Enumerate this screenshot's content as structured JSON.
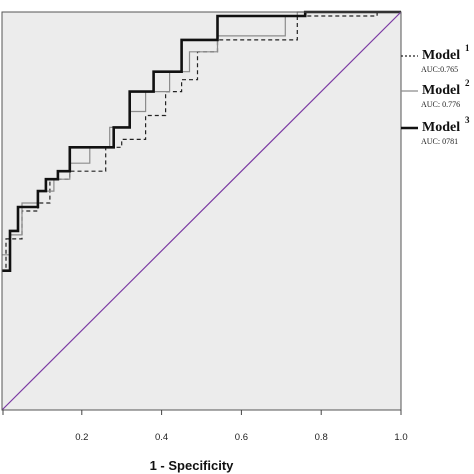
{
  "chart_data": {
    "type": "line",
    "xlabel": "1 - Specificity",
    "ylabel": "",
    "xlim": [
      0,
      1
    ],
    "ylim": [
      0,
      1
    ],
    "x_ticks": [
      "0.2",
      "0.4",
      "0.6",
      "0.8",
      "1.0"
    ],
    "grid": false,
    "legend_position": "right",
    "background_color": "#ececec",
    "series": [
      {
        "name": "Model 1",
        "number": "1",
        "auc_label": "AUC:0.765",
        "line_style": "dashed",
        "color": "#222222",
        "x": [
          0,
          0.01,
          0.01,
          0.05,
          0.05,
          0.09,
          0.09,
          0.12,
          0.12,
          0.17,
          0.17,
          0.26,
          0.26,
          0.3,
          0.3,
          0.36,
          0.36,
          0.41,
          0.41,
          0.45,
          0.45,
          0.49,
          0.49,
          0.54,
          0.54,
          0.74,
          0.74,
          0.94,
          0.94,
          1.0
        ],
        "y": [
          0.35,
          0.35,
          0.43,
          0.43,
          0.5,
          0.5,
          0.52,
          0.52,
          0.58,
          0.58,
          0.6,
          0.6,
          0.66,
          0.66,
          0.68,
          0.68,
          0.74,
          0.74,
          0.8,
          0.8,
          0.83,
          0.83,
          0.9,
          0.9,
          0.93,
          0.93,
          0.99,
          0.99,
          1.0,
          1.0
        ]
      },
      {
        "name": "Model 2",
        "number": "2",
        "auc_label": "AUC: 0.776",
        "line_style": "solid",
        "color": "#8c8c8c",
        "x": [
          0,
          0.02,
          0.02,
          0.05,
          0.05,
          0.09,
          0.09,
          0.13,
          0.13,
          0.17,
          0.17,
          0.22,
          0.22,
          0.27,
          0.27,
          0.32,
          0.32,
          0.36,
          0.36,
          0.42,
          0.42,
          0.47,
          0.47,
          0.54,
          0.54,
          0.71,
          0.71,
          0.74,
          0.74,
          1.0
        ],
        "y": [
          0.39,
          0.39,
          0.44,
          0.44,
          0.52,
          0.52,
          0.55,
          0.55,
          0.58,
          0.58,
          0.62,
          0.62,
          0.66,
          0.66,
          0.71,
          0.71,
          0.75,
          0.75,
          0.8,
          0.8,
          0.85,
          0.85,
          0.9,
          0.9,
          0.94,
          0.94,
          0.99,
          0.99,
          1.0,
          1.0
        ]
      },
      {
        "name": "Model 3",
        "number": "3",
        "auc_label": "AUC: 0781",
        "line_style": "solid-thick",
        "color": "#111111",
        "x": [
          0,
          0.02,
          0.02,
          0.04,
          0.04,
          0.09,
          0.09,
          0.11,
          0.11,
          0.14,
          0.14,
          0.17,
          0.17,
          0.28,
          0.28,
          0.32,
          0.32,
          0.38,
          0.38,
          0.45,
          0.45,
          0.54,
          0.54,
          0.76,
          0.76,
          1.0
        ],
        "y": [
          0.35,
          0.35,
          0.45,
          0.45,
          0.51,
          0.51,
          0.55,
          0.55,
          0.58,
          0.58,
          0.6,
          0.6,
          0.66,
          0.66,
          0.71,
          0.71,
          0.8,
          0.8,
          0.85,
          0.85,
          0.93,
          0.93,
          0.99,
          0.99,
          1.0,
          1.0
        ]
      },
      {
        "name": "",
        "line_style": "diagonal",
        "color": "#7b3aa3",
        "x": [
          0,
          1
        ],
        "y": [
          0,
          1
        ]
      }
    ]
  }
}
